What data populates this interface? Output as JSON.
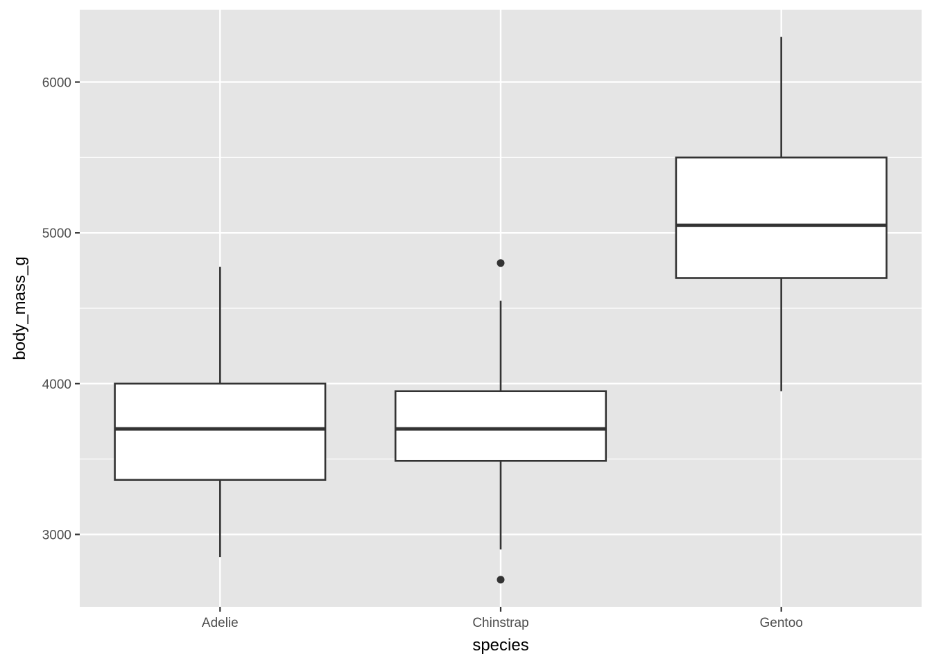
{
  "chart_data": {
    "type": "box",
    "title": "",
    "xlabel": "species",
    "ylabel": "body_mass_g",
    "ylim": [
      2520,
      6480
    ],
    "y_ticks": [
      3000,
      4000,
      5000,
      6000
    ],
    "y_minor_ticks": [
      3500,
      4500,
      5500
    ],
    "grid": true,
    "categories": [
      "Adelie",
      "Chinstrap",
      "Gentoo"
    ],
    "boxes": [
      {
        "category": "Adelie",
        "whisker_low": 2850,
        "q1": 3362,
        "median": 3700,
        "q3": 4000,
        "whisker_high": 4775,
        "outliers": []
      },
      {
        "category": "Chinstrap",
        "whisker_low": 2900,
        "q1": 3488,
        "median": 3700,
        "q3": 3950,
        "whisker_high": 4550,
        "outliers": [
          4800,
          2700
        ]
      },
      {
        "category": "Gentoo",
        "whisker_low": 3950,
        "q1": 4700,
        "median": 5050,
        "q3": 5500,
        "whisker_high": 6300,
        "outliers": []
      }
    ],
    "colors": {
      "panel": "#e5e5e5",
      "grid": "#ffffff",
      "box_fill": "#ffffff",
      "box_line": "#333333"
    }
  }
}
